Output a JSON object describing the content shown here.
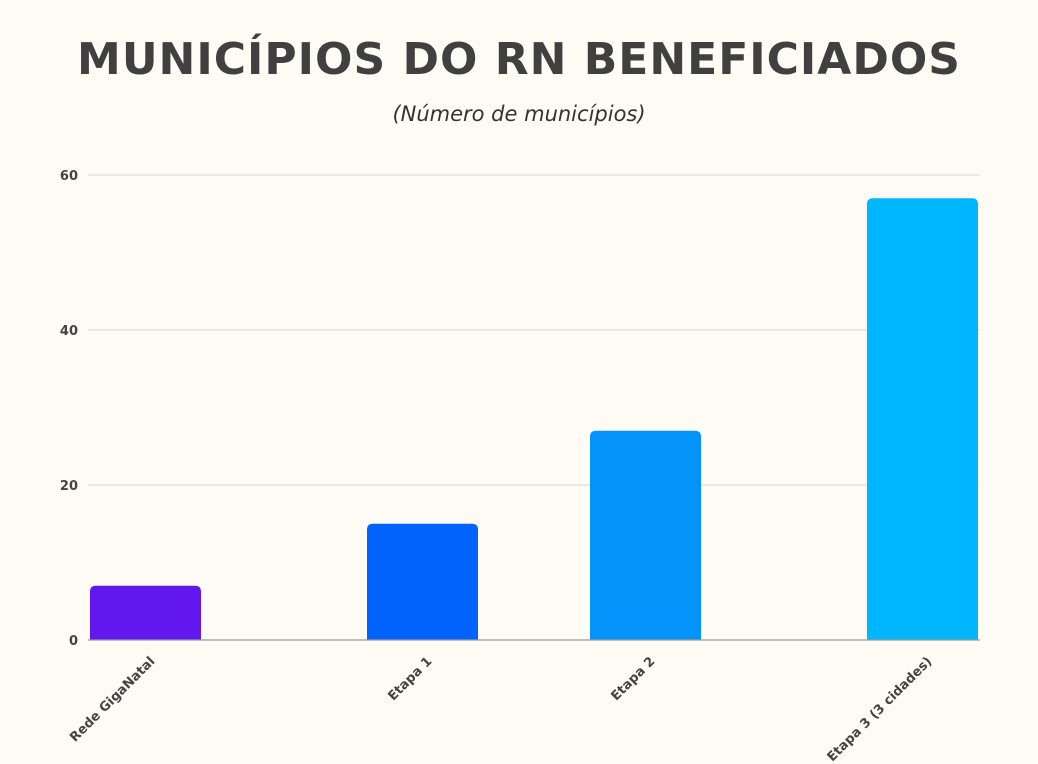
{
  "chart_data": {
    "type": "bar",
    "title": "MUNICÍPIOS DO RN BENEFICIADOS",
    "subtitle": "(Número de municípios)",
    "xlabel": "",
    "ylabel": "",
    "categories": [
      "Rede GigaNatal",
      "Etapa 1",
      "Etapa 2",
      "Etapa 3 (3 cidades)"
    ],
    "values": [
      7,
      15,
      27,
      57
    ],
    "colors": [
      "#6117ee",
      "#0063fc",
      "#0492fb",
      "#00b6fc"
    ],
    "ylim": [
      0,
      60
    ],
    "yticks": [
      0,
      20,
      40,
      60
    ],
    "grid": true,
    "legend": "none"
  }
}
